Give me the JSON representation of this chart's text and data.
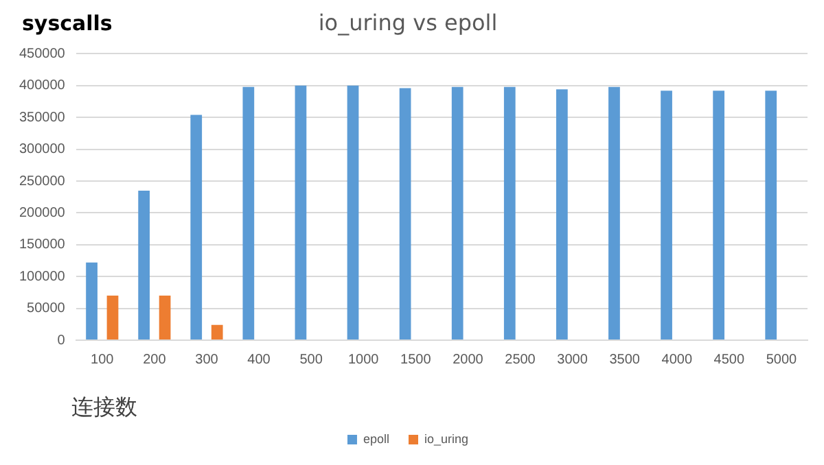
{
  "chart_data": {
    "type": "bar",
    "title": "io_uring vs epoll",
    "xlabel": "连接数",
    "ylabel": "syscalls",
    "categories": [
      "100",
      "200",
      "300",
      "400",
      "500",
      "1000",
      "1500",
      "2000",
      "2500",
      "3000",
      "3500",
      "4000",
      "4500",
      "5000"
    ],
    "series": [
      {
        "name": "epoll",
        "color": "#5b9bd5",
        "values": [
          122000,
          235000,
          354000,
          398000,
          400000,
          400000,
          396000,
          398000,
          398000,
          394000,
          398000,
          392000,
          392000,
          392000
        ]
      },
      {
        "name": "io_uring",
        "color": "#ed7d31",
        "values": [
          70000,
          70000,
          24000,
          null,
          null,
          null,
          null,
          null,
          null,
          null,
          null,
          null,
          null,
          null
        ]
      }
    ],
    "ylim": [
      0,
      450000
    ],
    "yticks": [
      0,
      50000,
      100000,
      150000,
      200000,
      250000,
      300000,
      350000,
      400000,
      450000
    ],
    "grid": "y",
    "legend": "bottom"
  }
}
